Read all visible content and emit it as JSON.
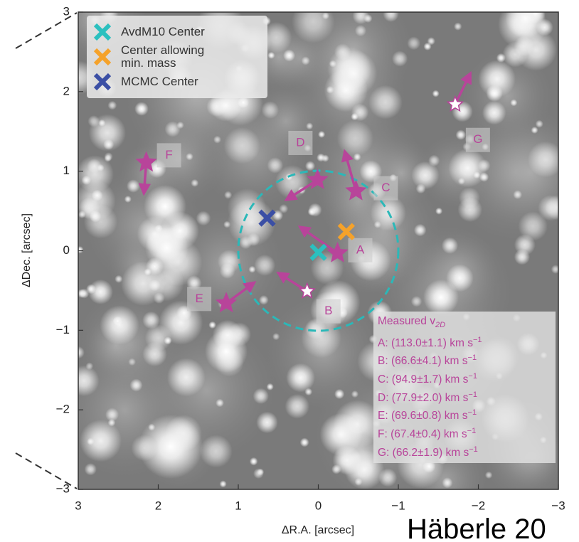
{
  "chart_data": {
    "type": "scatter",
    "xlabel": "ΔR.A. [arcsec]",
    "ylabel": "ΔDec. [arcsec]",
    "xlim": [
      3,
      -3
    ],
    "ylim": [
      -3,
      3
    ],
    "xticks": [
      3,
      2,
      1,
      0,
      {
        "value": -1,
        "label": "−1"
      },
      {
        "value": -2,
        "label": "−2"
      },
      {
        "value": -3,
        "label": "−3"
      }
    ],
    "yticks": [
      {
        "value": -3,
        "label": "−3"
      },
      {
        "value": -2,
        "label": "−2"
      },
      {
        "value": -1,
        "label": "−1"
      },
      0,
      1,
      2,
      3
    ],
    "circle": {
      "x": 0,
      "y": 0,
      "r": 1,
      "color": "#2bb8b8"
    },
    "series": [
      {
        "name": "AvdM10 Center",
        "color": "#2bc0bf",
        "x": 0.0,
        "y": -0.02
      },
      {
        "name": "Center allowing min. mass",
        "color": "#f5a22a",
        "x": -0.35,
        "y": 0.24
      },
      {
        "name": "MCMC Center",
        "color": "#3b4fa5",
        "x": 0.64,
        "y": 0.41
      }
    ],
    "stars": [
      {
        "label": "A",
        "x": -0.24,
        "y": -0.03,
        "tip_x": 0.23,
        "tip_y": 0.3,
        "fill": "#b8449a"
      },
      {
        "label": "B",
        "x": 0.14,
        "y": -0.51,
        "tip_x": 0.5,
        "tip_y": -0.28,
        "fill": "#ffffff"
      },
      {
        "label": "C",
        "x": -0.47,
        "y": 0.75,
        "tip_x": -0.33,
        "tip_y": 1.25,
        "fill": "#b8449a"
      },
      {
        "label": "D",
        "x": 0.01,
        "y": 0.89,
        "tip_x": 0.4,
        "tip_y": 0.64,
        "fill": "#b8449a"
      },
      {
        "label": "E",
        "x": 1.15,
        "y": -0.66,
        "tip_x": 0.8,
        "tip_y": -0.4,
        "fill": "#b8449a"
      },
      {
        "label": "F",
        "x": 2.15,
        "y": 1.11,
        "tip_x": 2.18,
        "tip_y": 0.72,
        "fill": "#b8449a"
      },
      {
        "label": "G",
        "x": -1.71,
        "y": 1.84,
        "tip_x": -1.9,
        "tip_y": 2.23,
        "fill": "#ffffff"
      }
    ],
    "arrow_color": "#b8449a",
    "velocity_box": {
      "title": "Measured v",
      "title_sub": "2D",
      "rows": [
        {
          "text": "A: (113.0±1.1) km s",
          "sup": "−1"
        },
        {
          "text": "B: (66.6±4.1) km s",
          "sup": "−1"
        },
        {
          "text": "C: (94.9±1.7) km s",
          "sup": "−1"
        },
        {
          "text": "D: (77.9±2.0) km s",
          "sup": "−1"
        },
        {
          "text": "E: (69.6±0.8) km s",
          "sup": "−1"
        },
        {
          "text": "F: (67.4±0.4) km s",
          "sup": "−1"
        },
        {
          "text": "G: (66.2±1.9) km s",
          "sup": "−1"
        }
      ]
    },
    "credit": "Häberle 20"
  }
}
